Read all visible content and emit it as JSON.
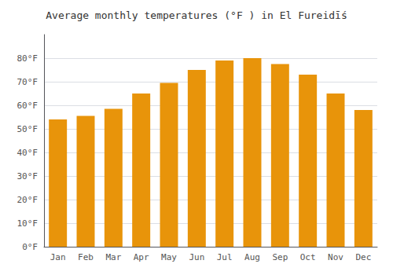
{
  "chart_data": {
    "type": "bar",
    "title": "Average monthly temperatures (°F ) in El Fureidīś",
    "categories": [
      "Jan",
      "Feb",
      "Mar",
      "Apr",
      "May",
      "Jun",
      "Jul",
      "Aug",
      "Sep",
      "Oct",
      "Nov",
      "Dec"
    ],
    "values": [
      54,
      55.5,
      58.5,
      65,
      69.5,
      75,
      79,
      80,
      77.5,
      73,
      65,
      58
    ],
    "color": "#E8940A",
    "ylim": [
      0,
      90
    ],
    "yticks": [
      {
        "value": 0,
        "label": "0°F"
      },
      {
        "value": 10,
        "label": "10°F"
      },
      {
        "value": 20,
        "label": "20°F"
      },
      {
        "value": 30,
        "label": "30°F"
      },
      {
        "value": 40,
        "label": "40°F"
      },
      {
        "value": 50,
        "label": "50°F"
      },
      {
        "value": 60,
        "label": "60°F"
      },
      {
        "value": 70,
        "label": "70°F"
      },
      {
        "value": 80,
        "label": "80°F"
      }
    ],
    "grid": true
  }
}
